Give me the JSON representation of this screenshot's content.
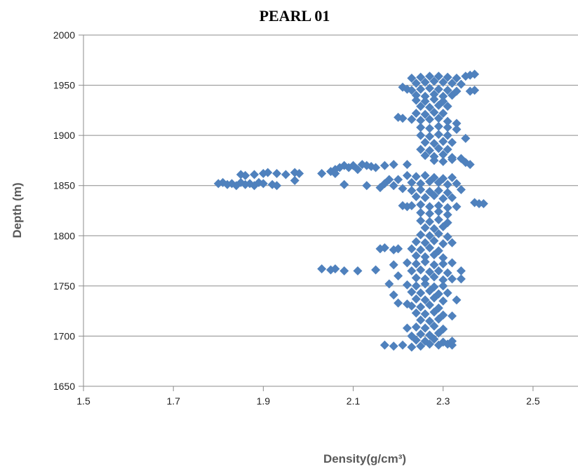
{
  "chart_data": {
    "type": "scatter",
    "title": "PEARL 01",
    "xlabel": "Density(g/cm³)",
    "ylabel": "Depth (m)",
    "xlim": [
      1.5,
      2.6
    ],
    "ylim": [
      1650,
      2000
    ],
    "xticks": [
      "1.5",
      "1.7",
      "1.9",
      "2.1",
      "2.3",
      "2.5"
    ],
    "yticks": [
      "1650",
      "1700",
      "1750",
      "1800",
      "1850",
      "1900",
      "1950",
      "2000"
    ],
    "grid": "horizontal",
    "marker": "diamond",
    "color": "#4f81bd",
    "series": [
      {
        "points": [
          [
            1.8,
            1852
          ],
          [
            1.81,
            1853
          ],
          [
            1.82,
            1851
          ],
          [
            1.83,
            1852
          ],
          [
            1.84,
            1850
          ],
          [
            1.85,
            1853
          ],
          [
            1.86,
            1851
          ],
          [
            1.87,
            1852
          ],
          [
            1.88,
            1850
          ],
          [
            1.89,
            1853
          ],
          [
            1.9,
            1852
          ],
          [
            1.92,
            1851
          ],
          [
            1.93,
            1850
          ],
          [
            1.85,
            1861
          ],
          [
            1.86,
            1860
          ],
          [
            1.88,
            1861
          ],
          [
            1.9,
            1862
          ],
          [
            1.91,
            1863
          ],
          [
            1.93,
            1862
          ],
          [
            1.95,
            1861
          ],
          [
            1.97,
            1863
          ],
          [
            1.98,
            1862
          ],
          [
            1.97,
            1855
          ],
          [
            2.03,
            1862
          ],
          [
            2.05,
            1864
          ],
          [
            2.06,
            1866
          ],
          [
            2.07,
            1868
          ],
          [
            2.08,
            1870
          ],
          [
            2.09,
            1868
          ],
          [
            2.1,
            1870
          ],
          [
            2.11,
            1866
          ],
          [
            2.12,
            1871
          ],
          [
            2.13,
            1870
          ],
          [
            2.14,
            1869
          ],
          [
            2.15,
            1868
          ],
          [
            2.17,
            1870
          ],
          [
            2.19,
            1871
          ],
          [
            2.22,
            1871
          ],
          [
            2.08,
            1851
          ],
          [
            2.13,
            1850
          ],
          [
            2.06,
            1862
          ],
          [
            2.03,
            1767
          ],
          [
            2.05,
            1766
          ],
          [
            2.06,
            1767
          ],
          [
            2.08,
            1765
          ],
          [
            2.11,
            1765
          ],
          [
            2.15,
            1766
          ],
          [
            2.16,
            1787
          ],
          [
            2.17,
            1788
          ],
          [
            2.19,
            1786
          ],
          [
            2.2,
            1787
          ],
          [
            2.17,
            1691
          ],
          [
            2.19,
            1690
          ],
          [
            2.21,
            1691
          ],
          [
            2.23,
            1689
          ],
          [
            2.25,
            1690
          ],
          [
            2.27,
            1692
          ],
          [
            2.29,
            1691
          ],
          [
            2.31,
            1692
          ],
          [
            2.32,
            1691
          ],
          [
            2.39,
            1832
          ],
          [
            2.37,
            1833
          ],
          [
            2.38,
            1832
          ],
          [
            2.36,
            1960
          ],
          [
            2.37,
            1961
          ],
          [
            2.35,
            1959
          ],
          [
            2.36,
            1944
          ],
          [
            2.37,
            1945
          ],
          [
            2.35,
            1897
          ],
          [
            2.35,
            1873
          ],
          [
            2.36,
            1871
          ],
          [
            2.34,
            1846
          ],
          [
            2.34,
            1765
          ],
          [
            2.34,
            1757
          ],
          [
            2.33,
            1736
          ],
          [
            2.32,
            1720
          ],
          [
            2.32,
            1695
          ],
          [
            2.21,
            1948
          ],
          [
            2.22,
            1946
          ],
          [
            2.2,
            1918
          ],
          [
            2.21,
            1917
          ],
          [
            2.18,
            1856
          ],
          [
            2.17,
            1852
          ],
          [
            2.16,
            1848
          ],
          [
            2.19,
            1850
          ],
          [
            2.2,
            1856
          ],
          [
            2.21,
            1847
          ],
          [
            2.22,
            1829
          ],
          [
            2.21,
            1830
          ],
          [
            2.19,
            1771
          ],
          [
            2.2,
            1760
          ],
          [
            2.18,
            1752
          ],
          [
            2.19,
            1741
          ],
          [
            2.2,
            1733
          ],
          [
            2.22,
            1732
          ],
          [
            2.22,
            1708
          ],
          [
            2.23,
            1700
          ],
          [
            2.23,
            1957
          ],
          [
            2.25,
            1958
          ],
          [
            2.27,
            1959
          ],
          [
            2.29,
            1959
          ],
          [
            2.31,
            1958
          ],
          [
            2.33,
            1957
          ],
          [
            2.24,
            1952
          ],
          [
            2.26,
            1953
          ],
          [
            2.28,
            1954
          ],
          [
            2.3,
            1953
          ],
          [
            2.32,
            1952
          ],
          [
            2.34,
            1951
          ],
          [
            2.23,
            1945
          ],
          [
            2.25,
            1946
          ],
          [
            2.27,
            1947
          ],
          [
            2.29,
            1946
          ],
          [
            2.31,
            1945
          ],
          [
            2.33,
            1944
          ],
          [
            2.24,
            1940
          ],
          [
            2.26,
            1939
          ],
          [
            2.28,
            1941
          ],
          [
            2.3,
            1939
          ],
          [
            2.32,
            1940
          ],
          [
            2.24,
            1935
          ],
          [
            2.26,
            1934
          ],
          [
            2.28,
            1936
          ],
          [
            2.3,
            1934
          ],
          [
            2.25,
            1929
          ],
          [
            2.27,
            1928
          ],
          [
            2.29,
            1930
          ],
          [
            2.31,
            1929
          ],
          [
            2.24,
            1922
          ],
          [
            2.26,
            1921
          ],
          [
            2.28,
            1923
          ],
          [
            2.3,
            1922
          ],
          [
            2.23,
            1916
          ],
          [
            2.25,
            1915
          ],
          [
            2.27,
            1916
          ],
          [
            2.29,
            1917
          ],
          [
            2.31,
            1914
          ],
          [
            2.33,
            1912
          ],
          [
            2.25,
            1908
          ],
          [
            2.27,
            1907
          ],
          [
            2.29,
            1909
          ],
          [
            2.31,
            1908
          ],
          [
            2.33,
            1906
          ],
          [
            2.25,
            1900
          ],
          [
            2.27,
            1899
          ],
          [
            2.29,
            1901
          ],
          [
            2.31,
            1900
          ],
          [
            2.26,
            1893
          ],
          [
            2.28,
            1892
          ],
          [
            2.3,
            1894
          ],
          [
            2.32,
            1893
          ],
          [
            2.25,
            1886
          ],
          [
            2.27,
            1885
          ],
          [
            2.29,
            1887
          ],
          [
            2.31,
            1886
          ],
          [
            2.26,
            1880
          ],
          [
            2.28,
            1879
          ],
          [
            2.3,
            1881
          ],
          [
            2.32,
            1878
          ],
          [
            2.34,
            1877
          ],
          [
            2.28,
            1875
          ],
          [
            2.3,
            1874
          ],
          [
            2.32,
            1876
          ],
          [
            2.22,
            1860
          ],
          [
            2.24,
            1859
          ],
          [
            2.26,
            1860
          ],
          [
            2.28,
            1858
          ],
          [
            2.3,
            1857
          ],
          [
            2.32,
            1858
          ],
          [
            2.23,
            1853
          ],
          [
            2.25,
            1852
          ],
          [
            2.27,
            1854
          ],
          [
            2.29,
            1853
          ],
          [
            2.31,
            1851
          ],
          [
            2.33,
            1852
          ],
          [
            2.23,
            1845
          ],
          [
            2.25,
            1846
          ],
          [
            2.27,
            1844
          ],
          [
            2.29,
            1845
          ],
          [
            2.31,
            1843
          ],
          [
            2.24,
            1839
          ],
          [
            2.26,
            1838
          ],
          [
            2.28,
            1840
          ],
          [
            2.3,
            1837
          ],
          [
            2.32,
            1838
          ],
          [
            2.23,
            1830
          ],
          [
            2.25,
            1831
          ],
          [
            2.27,
            1829
          ],
          [
            2.29,
            1830
          ],
          [
            2.31,
            1828
          ],
          [
            2.33,
            1829
          ],
          [
            2.25,
            1823
          ],
          [
            2.27,
            1822
          ],
          [
            2.29,
            1824
          ],
          [
            2.31,
            1821
          ],
          [
            2.25,
            1815
          ],
          [
            2.27,
            1814
          ],
          [
            2.29,
            1816
          ],
          [
            2.31,
            1813
          ],
          [
            2.26,
            1808
          ],
          [
            2.28,
            1807
          ],
          [
            2.3,
            1809
          ],
          [
            2.25,
            1801
          ],
          [
            2.27,
            1800
          ],
          [
            2.29,
            1802
          ],
          [
            2.31,
            1799
          ],
          [
            2.24,
            1794
          ],
          [
            2.26,
            1793
          ],
          [
            2.28,
            1795
          ],
          [
            2.3,
            1792
          ],
          [
            2.32,
            1793
          ],
          [
            2.23,
            1787
          ],
          [
            2.25,
            1786
          ],
          [
            2.27,
            1788
          ],
          [
            2.29,
            1785
          ],
          [
            2.24,
            1780
          ],
          [
            2.26,
            1779
          ],
          [
            2.28,
            1781
          ],
          [
            2.3,
            1778
          ],
          [
            2.22,
            1773
          ],
          [
            2.24,
            1772
          ],
          [
            2.26,
            1774
          ],
          [
            2.28,
            1771
          ],
          [
            2.3,
            1772
          ],
          [
            2.32,
            1773
          ],
          [
            2.23,
            1765
          ],
          [
            2.25,
            1766
          ],
          [
            2.27,
            1764
          ],
          [
            2.29,
            1765
          ],
          [
            2.31,
            1763
          ],
          [
            2.24,
            1758
          ],
          [
            2.26,
            1757
          ],
          [
            2.28,
            1759
          ],
          [
            2.3,
            1756
          ],
          [
            2.32,
            1757
          ],
          [
            2.22,
            1751
          ],
          [
            2.24,
            1750
          ],
          [
            2.26,
            1752
          ],
          [
            2.28,
            1749
          ],
          [
            2.3,
            1750
          ],
          [
            2.23,
            1744
          ],
          [
            2.25,
            1743
          ],
          [
            2.27,
            1745
          ],
          [
            2.29,
            1742
          ],
          [
            2.31,
            1743
          ],
          [
            2.24,
            1737
          ],
          [
            2.26,
            1736
          ],
          [
            2.28,
            1738
          ],
          [
            2.3,
            1735
          ],
          [
            2.23,
            1730
          ],
          [
            2.25,
            1729
          ],
          [
            2.27,
            1731
          ],
          [
            2.29,
            1728
          ],
          [
            2.24,
            1723
          ],
          [
            2.26,
            1722
          ],
          [
            2.28,
            1724
          ],
          [
            2.3,
            1721
          ],
          [
            2.25,
            1716
          ],
          [
            2.27,
            1715
          ],
          [
            2.29,
            1717
          ],
          [
            2.24,
            1709
          ],
          [
            2.26,
            1708
          ],
          [
            2.28,
            1710
          ],
          [
            2.3,
            1707
          ],
          [
            2.25,
            1702
          ],
          [
            2.27,
            1701
          ],
          [
            2.29,
            1703
          ],
          [
            2.24,
            1696
          ],
          [
            2.26,
            1695
          ],
          [
            2.28,
            1697
          ],
          [
            2.3,
            1694
          ]
        ]
      }
    ]
  }
}
